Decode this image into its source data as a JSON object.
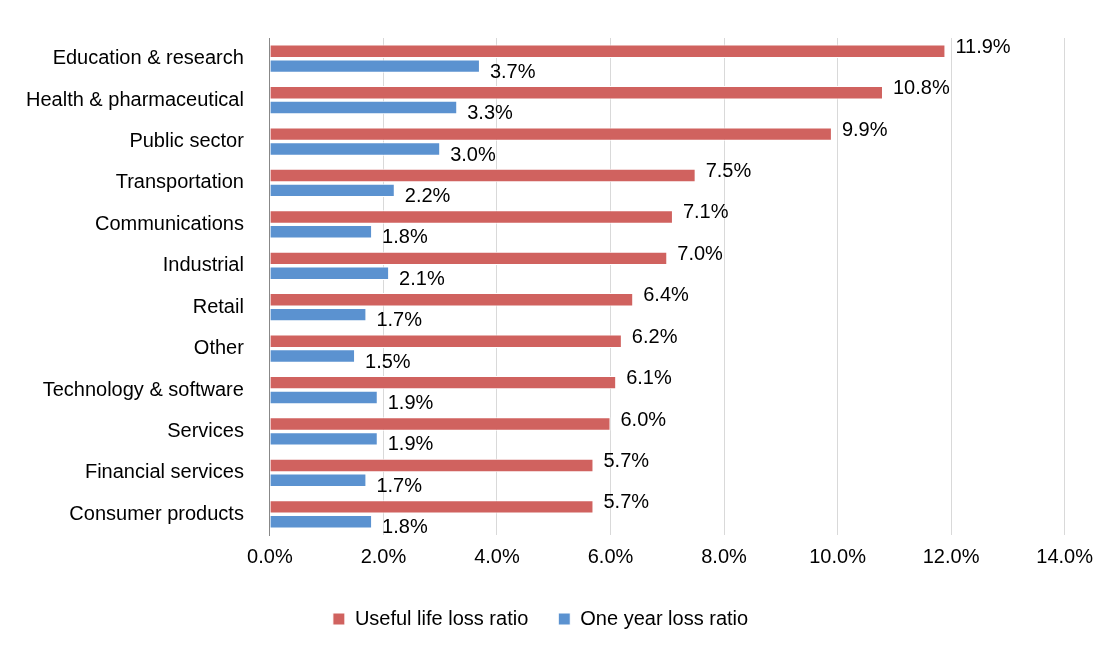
{
  "chart_data": {
    "type": "bar",
    "orientation": "horizontal",
    "categories": [
      "Education & research",
      "Health & pharmaceutical",
      "Public sector",
      "Transportation",
      "Communications",
      "Industrial",
      "Retail",
      "Other",
      "Technology & software",
      "Services",
      "Financial services",
      "Consumer products"
    ],
    "series": [
      {
        "name": "Useful life loss ratio",
        "color": "#d0625f",
        "values": [
          11.9,
          10.8,
          9.9,
          7.5,
          7.1,
          7.0,
          6.4,
          6.2,
          6.1,
          6.0,
          5.7,
          5.7
        ],
        "value_labels": [
          "11.9%",
          "10.8%",
          "9.9%",
          "7.5%",
          "7.1%",
          "7.0%",
          "6.4%",
          "6.2%",
          "6.1%",
          "6.0%",
          "5.7%",
          "5.7%"
        ]
      },
      {
        "name": "One year loss ratio",
        "color": "#5b92d0",
        "values": [
          3.7,
          3.3,
          3.0,
          2.2,
          1.8,
          2.1,
          1.7,
          1.5,
          1.9,
          1.9,
          1.7,
          1.8
        ],
        "value_labels": [
          "3.7%",
          "3.3%",
          "3.0%",
          "2.2%",
          "1.8%",
          "2.1%",
          "1.7%",
          "1.5%",
          "1.9%",
          "1.9%",
          "1.7%",
          "1.8%"
        ]
      }
    ],
    "xlim": [
      0,
      14
    ],
    "xticks": [
      {
        "value": 0,
        "label": "0.0%"
      },
      {
        "value": 2,
        "label": "2.0%"
      },
      {
        "value": 4,
        "label": "4.0%"
      },
      {
        "value": 6,
        "label": "6.0%"
      },
      {
        "value": 8,
        "label": "8.0%"
      },
      {
        "value": 10,
        "label": "10.0%"
      },
      {
        "value": 12,
        "label": "12.0%"
      },
      {
        "value": 14,
        "label": "14.0%"
      }
    ],
    "grid": "x",
    "legend": "bottom"
  }
}
